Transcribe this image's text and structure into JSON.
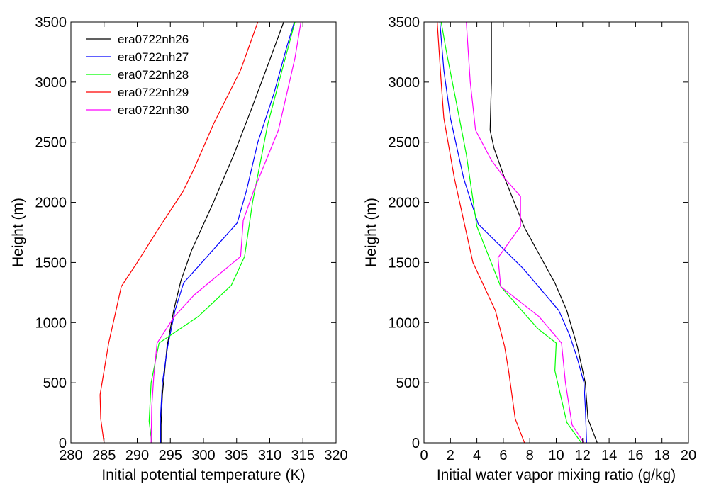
{
  "chart_data": [
    {
      "type": "line",
      "title": "",
      "xlabel": "Initial potential temperature (K)",
      "ylabel": "Height (m)",
      "xlim": [
        280,
        320
      ],
      "ylim": [
        0,
        3500
      ],
      "xticks": [
        "280",
        "285",
        "290",
        "295",
        "300",
        "305",
        "310",
        "315",
        "320"
      ],
      "yticks": [
        "0",
        "500",
        "1000",
        "1500",
        "2000",
        "2500",
        "3000",
        "3500"
      ],
      "grid": false,
      "legend_position": "top-left",
      "series": [
        {
          "name": "era0722nh26",
          "color": "#000000",
          "points": [
            [
              293.6,
              0
            ],
            [
              293.6,
              150
            ],
            [
              293.8,
              400
            ],
            [
              294.5,
              800
            ],
            [
              295.5,
              1100
            ],
            [
              296.6,
              1350
            ],
            [
              298.2,
              1600
            ],
            [
              301.5,
              2000
            ],
            [
              304.6,
              2400
            ],
            [
              307.4,
              2800
            ],
            [
              310.1,
              3200
            ],
            [
              312.1,
              3500
            ]
          ]
        },
        {
          "name": "era0722nh27",
          "color": "#0000ff",
          "points": [
            [
              293.5,
              0
            ],
            [
              293.5,
              200
            ],
            [
              293.8,
              500
            ],
            [
              294.6,
              800
            ],
            [
              295.7,
              1100
            ],
            [
              297.0,
              1330
            ],
            [
              305.1,
              1830
            ],
            [
              306.5,
              2100
            ],
            [
              308.2,
              2500
            ],
            [
              310.6,
              2900
            ],
            [
              312.6,
              3300
            ],
            [
              313.7,
              3500
            ]
          ]
        },
        {
          "name": "era0722nh28",
          "color": "#00ff00",
          "points": [
            [
              292.2,
              0
            ],
            [
              291.8,
              180
            ],
            [
              292.1,
              500
            ],
            [
              293.3,
              830
            ],
            [
              299.2,
              1050
            ],
            [
              304.2,
              1310
            ],
            [
              306.2,
              1550
            ],
            [
              307.4,
              2000
            ],
            [
              309.7,
              2650
            ],
            [
              312.1,
              3150
            ],
            [
              313.8,
              3500
            ]
          ]
        },
        {
          "name": "era0722nh29",
          "color": "#ff0000",
          "points": [
            [
              285.0,
              0
            ],
            [
              284.5,
              200
            ],
            [
              284.4,
              400
            ],
            [
              285.7,
              830
            ],
            [
              286.6,
              1050
            ],
            [
              287.6,
              1300
            ],
            [
              290.0,
              1500
            ],
            [
              293.2,
              1780
            ],
            [
              296.9,
              2090
            ],
            [
              298.5,
              2270
            ],
            [
              301.5,
              2650
            ],
            [
              305.6,
              3100
            ],
            [
              308.2,
              3500
            ]
          ]
        },
        {
          "name": "era0722nh30",
          "color": "#ff00ff",
          "points": [
            [
              292.1,
              0
            ],
            [
              292.2,
              300
            ],
            [
              292.5,
              550
            ],
            [
              293.0,
              830
            ],
            [
              295.6,
              1050
            ],
            [
              298.6,
              1230
            ],
            [
              305.6,
              1550
            ],
            [
              306.0,
              1850
            ],
            [
              307.6,
              2100
            ],
            [
              311.3,
              2600
            ],
            [
              313.8,
              3200
            ],
            [
              314.7,
              3500
            ]
          ]
        }
      ]
    },
    {
      "type": "line",
      "title": "",
      "xlabel": "Initial water vapor mixing ratio (g/kg)",
      "ylabel": "Height (m)",
      "xlim": [
        0,
        20
      ],
      "ylim": [
        0,
        3500
      ],
      "xticks": [
        "0",
        "2",
        "4",
        "6",
        "8",
        "10",
        "12",
        "14",
        "16",
        "18",
        "20"
      ],
      "yticks": [
        "0",
        "500",
        "1000",
        "1500",
        "2000",
        "2500",
        "3000",
        "3500"
      ],
      "grid": false,
      "series": [
        {
          "name": "era0722nh26",
          "color": "#000000",
          "points": [
            [
              13.1,
              0
            ],
            [
              12.4,
              200
            ],
            [
              12.2,
              500
            ],
            [
              11.6,
              800
            ],
            [
              10.8,
              1100
            ],
            [
              9.9,
              1330
            ],
            [
              7.6,
              1790
            ],
            [
              6.1,
              2200
            ],
            [
              5.3,
              2450
            ],
            [
              5.0,
              2600
            ],
            [
              5.1,
              3000
            ],
            [
              5.1,
              3500
            ]
          ]
        },
        {
          "name": "era0722nh27",
          "color": "#0000ff",
          "points": [
            [
              12.3,
              0
            ],
            [
              12.2,
              300
            ],
            [
              12.1,
              500
            ],
            [
              11.6,
              700
            ],
            [
              11.0,
              900
            ],
            [
              10.2,
              1100
            ],
            [
              7.5,
              1450
            ],
            [
              4.1,
              1820
            ],
            [
              3.0,
              2200
            ],
            [
              2.0,
              2700
            ],
            [
              1.5,
              3100
            ],
            [
              1.2,
              3500
            ]
          ]
        },
        {
          "name": "era0722nh28",
          "color": "#00ff00",
          "points": [
            [
              11.9,
              0
            ],
            [
              10.8,
              170
            ],
            [
              9.9,
              600
            ],
            [
              10.0,
              830
            ],
            [
              8.6,
              950
            ],
            [
              5.8,
              1300
            ],
            [
              4.0,
              1800
            ],
            [
              3.2,
              2400
            ],
            [
              2.5,
              2800
            ],
            [
              1.7,
              3250
            ],
            [
              1.3,
              3500
            ]
          ]
        },
        {
          "name": "era0722nh29",
          "color": "#ff0000",
          "points": [
            [
              7.6,
              0
            ],
            [
              6.9,
              200
            ],
            [
              6.4,
              600
            ],
            [
              6.1,
              800
            ],
            [
              5.4,
              1100
            ],
            [
              3.7,
              1500
            ],
            [
              2.3,
              2200
            ],
            [
              1.5,
              2700
            ],
            [
              1.3,
              3000
            ],
            [
              1.0,
              3500
            ]
          ]
        },
        {
          "name": "era0722nh30",
          "color": "#ff00ff",
          "points": [
            [
              12.1,
              0
            ],
            [
              11.2,
              150
            ],
            [
              10.7,
              500
            ],
            [
              10.4,
              830
            ],
            [
              8.7,
              1050
            ],
            [
              5.8,
              1300
            ],
            [
              5.6,
              1540
            ],
            [
              7.3,
              1800
            ],
            [
              7.3,
              2050
            ],
            [
              6.1,
              2200
            ],
            [
              5.1,
              2350
            ],
            [
              3.9,
              2600
            ],
            [
              3.5,
              3000
            ],
            [
              3.2,
              3500
            ]
          ]
        }
      ]
    }
  ]
}
